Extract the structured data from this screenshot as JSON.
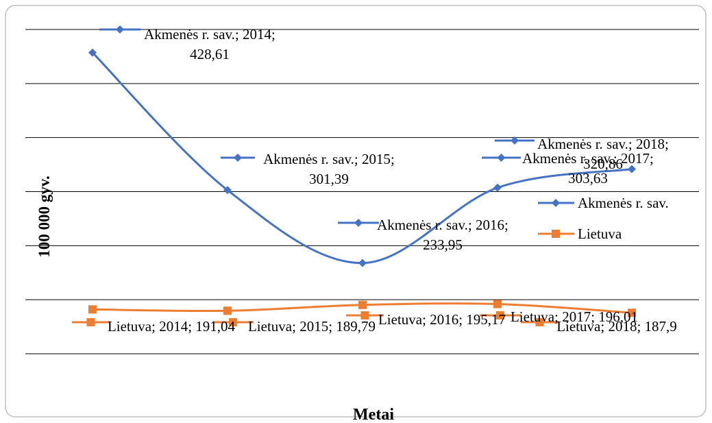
{
  "chart_data": {
    "type": "line",
    "ylabel": "100 000 gyv.",
    "xlabel": "Metai",
    "ylim": [
      150,
      450
    ],
    "yticks": [
      150,
      200,
      250,
      300,
      350,
      400,
      450
    ],
    "grid": true,
    "legend": "right",
    "series": [
      {
        "name": "Akmenės r. sav.",
        "color": "#4472c4",
        "marker": "diamond",
        "values": [
          428.61,
          301.39,
          233.95,
          303.63,
          320.86
        ],
        "value_labels": [
          "Akmenės r. sav.; 2014; 428,61",
          "Akmenės r. sav.; 2015; 301,39",
          "Akmenės r. sav.; 2016; 233,95",
          "Akmenės r. sav.; 2017; 303,63",
          "Akmenės r. sav.; 2018; 320,86"
        ]
      },
      {
        "name": "Lietuva",
        "color": "#ed7d31",
        "marker": "square",
        "values": [
          191.04,
          189.79,
          195.17,
          196.01,
          187.9
        ],
        "value_labels": [
          "Lietuva; 2014; 191,04",
          "Lietuva; 2015; 189,79",
          "Lietuva; 2016; 195,17",
          "Lietuva; 2017; 196,01",
          "Lietuva; 2018; 187,9"
        ]
      }
    ]
  }
}
